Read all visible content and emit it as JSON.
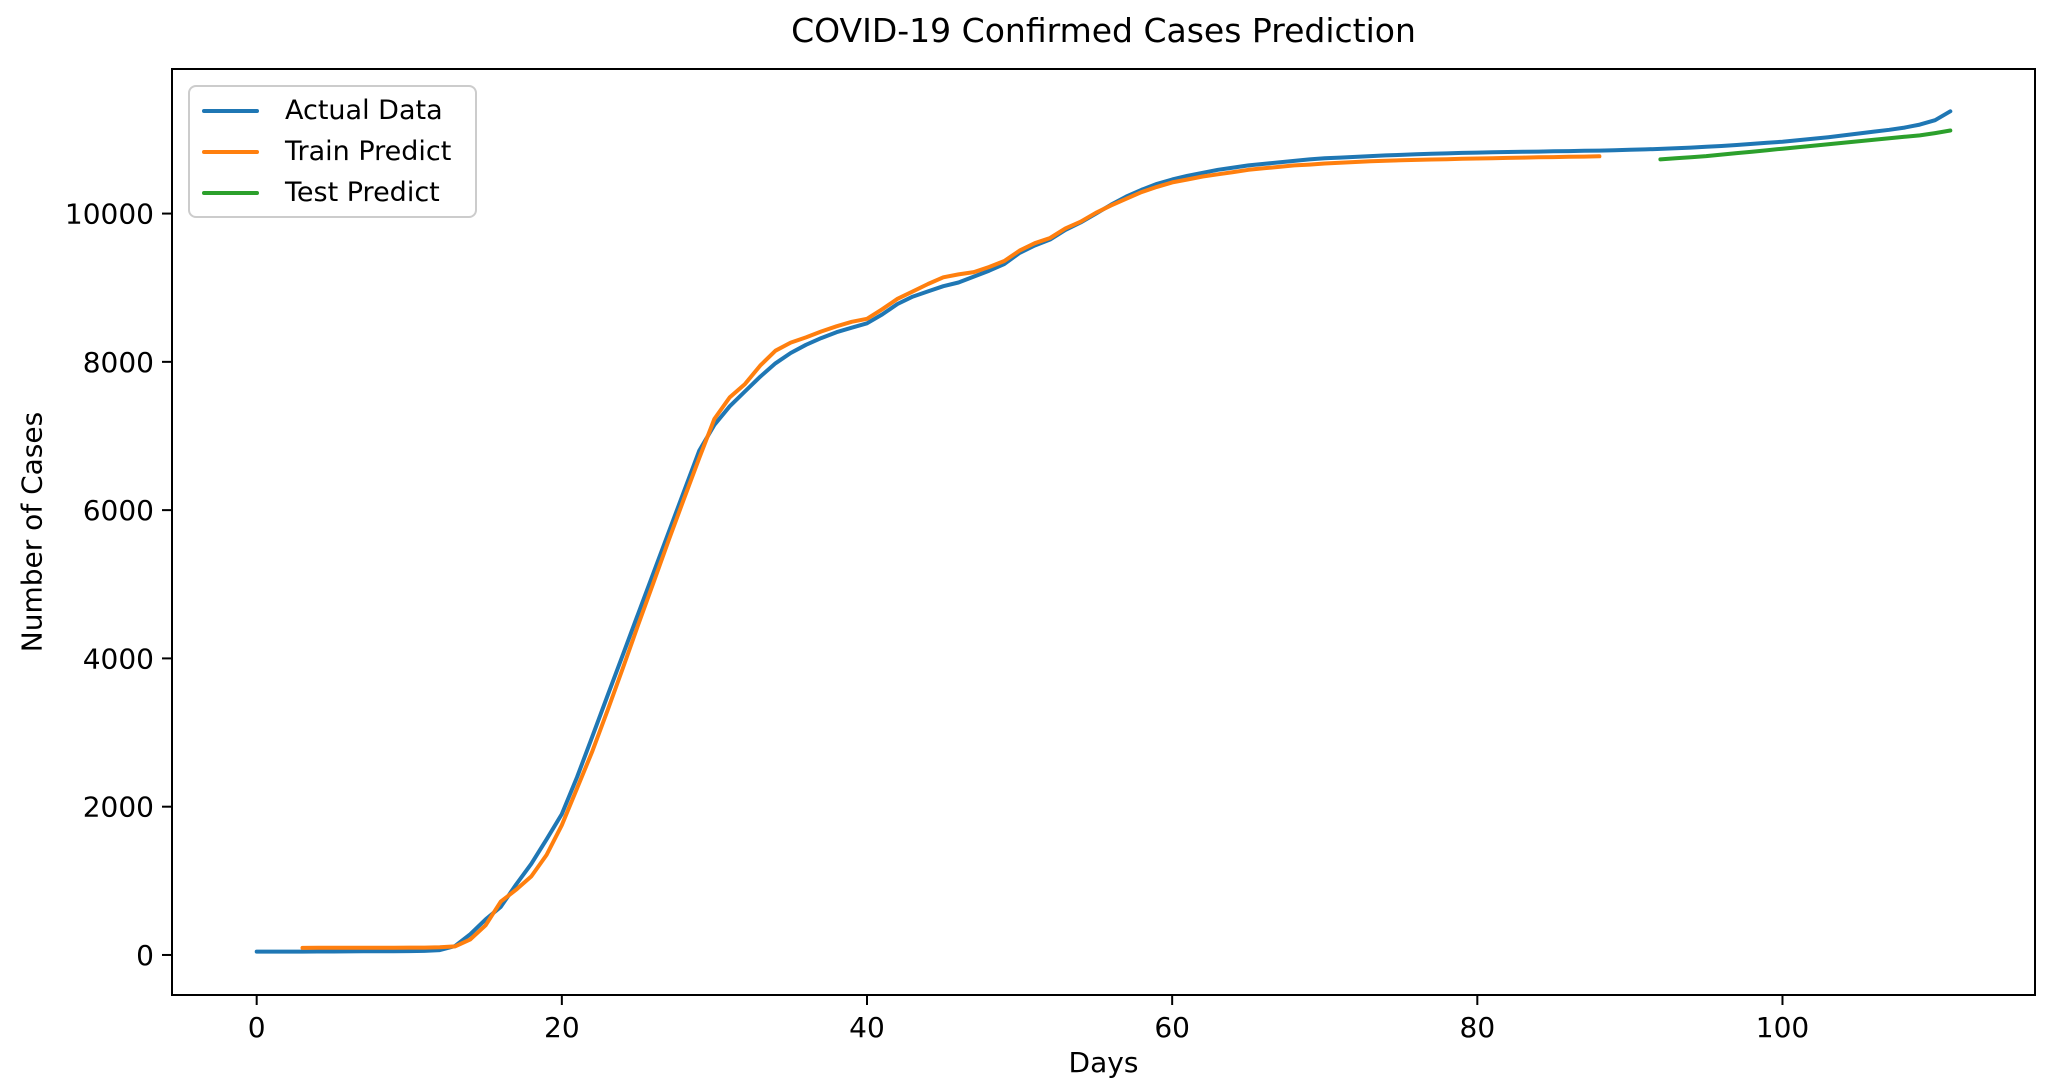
{
  "chart_data": {
    "type": "line",
    "title": "COVID-19 Confirmed Cases Prediction",
    "xlabel": "Days",
    "ylabel": "Number of Cases",
    "grid": false,
    "legend_position": "upper left",
    "xticks": [
      0,
      20,
      40,
      60,
      80,
      100
    ],
    "yticks": [
      0,
      2000,
      4000,
      6000,
      8000,
      10000
    ],
    "xlim": [
      -5.55,
      116.55
    ],
    "ylim": [
      -540,
      11950
    ],
    "x_step": 1,
    "series": [
      {
        "name": "Actual Data",
        "color": "#1f77b4",
        "x_start": 0,
        "values": [
          46,
          46,
          46,
          46,
          47,
          47,
          48,
          49,
          50,
          51,
          52,
          55,
          65,
          120,
          280,
          480,
          650,
          950,
          1230,
          1560,
          1900,
          2400,
          2950,
          3500,
          4050,
          4600,
          5150,
          5700,
          6250,
          6800,
          7150,
          7400,
          7600,
          7800,
          7980,
          8120,
          8230,
          8320,
          8400,
          8460,
          8520,
          8640,
          8780,
          8880,
          8950,
          9020,
          9070,
          9150,
          9230,
          9320,
          9470,
          9570,
          9650,
          9780,
          9880,
          10000,
          10120,
          10230,
          10320,
          10400,
          10460,
          10510,
          10550,
          10590,
          10620,
          10650,
          10670,
          10690,
          10710,
          10730,
          10745,
          10755,
          10765,
          10775,
          10785,
          10792,
          10800,
          10806,
          10812,
          10818,
          10822,
          10826,
          10830,
          10833,
          10836,
          10840,
          10843,
          10846,
          10850,
          10855,
          10860,
          10865,
          10872,
          10880,
          10890,
          10900,
          10912,
          10925,
          10940,
          10955,
          10970,
          10990,
          11010,
          11030,
          11055,
          11080,
          11105,
          11130,
          11160,
          11200,
          11260,
          11380
        ]
      },
      {
        "name": "Train Predict",
        "color": "#ff7f0e",
        "x_start": 3,
        "values": [
          95,
          96,
          96,
          97,
          97,
          98,
          98,
          99,
          100,
          104,
          115,
          210,
          400,
          720,
          880,
          1060,
          1350,
          1750,
          2250,
          2750,
          3300,
          3870,
          4450,
          5020,
          5590,
          6150,
          6700,
          7230,
          7520,
          7700,
          7950,
          8150,
          8260,
          8330,
          8410,
          8480,
          8540,
          8580,
          8710,
          8850,
          8950,
          9050,
          9140,
          9180,
          9210,
          9280,
          9360,
          9500,
          9600,
          9670,
          9800,
          9890,
          10010,
          10110,
          10200,
          10290,
          10360,
          10420,
          10460,
          10500,
          10530,
          10560,
          10590,
          10610,
          10630,
          10650,
          10660,
          10675,
          10685,
          10695,
          10705,
          10712,
          10718,
          10724,
          10729,
          10734,
          10739,
          10743,
          10747,
          10751,
          10755,
          10759,
          10762,
          10766,
          10769,
          10772
        ]
      },
      {
        "name": "Test Predict",
        "color": "#2ca02c",
        "x_start": 92,
        "values": [
          10730,
          10745,
          10760,
          10775,
          10795,
          10815,
          10835,
          10855,
          10875,
          10895,
          10915,
          10935,
          10955,
          10975,
          10995,
          11015,
          11035,
          11055,
          11085,
          11120
        ]
      }
    ]
  },
  "style": {
    "background": "#ffffff",
    "spine_color": "#000000",
    "text_color": "#000000",
    "legend_border": "#cccccc",
    "line_width": 4
  }
}
